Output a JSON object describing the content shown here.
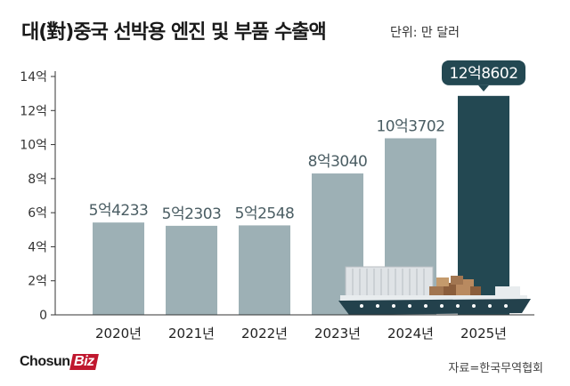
{
  "title": "대(對)중국 선박용 엔진 및 부품 수출액",
  "unit_label": "단위: 만 달러",
  "source": "자료=한국무역협회",
  "logo": {
    "main": "Chosun",
    "accent": "Biz"
  },
  "colors": {
    "bar": "#9db0b5",
    "bar_highlight": "#234852",
    "label_highlight_bg": "#234852",
    "axis": "#333333"
  },
  "chart_data": {
    "type": "bar",
    "title": "대(對)중국 선박용 엔진 및 부품 수출액",
    "unit": "만 달러",
    "categories": [
      "2020년",
      "2021년",
      "2022년",
      "2023년",
      "2024년",
      "2025년"
    ],
    "values": [
      54233,
      52303,
      52548,
      83040,
      103702,
      128602
    ],
    "data_labels": [
      "5억4233",
      "5억2303",
      "5억2548",
      "8억3040",
      "10억3702",
      "12억8602"
    ],
    "highlight_index": 5,
    "y_ticks": [
      {
        "value": 0,
        "label": "0"
      },
      {
        "value": 20000,
        "label": "2억"
      },
      {
        "value": 40000,
        "label": "4억"
      },
      {
        "value": 60000,
        "label": "6억"
      },
      {
        "value": 80000,
        "label": "8억"
      },
      {
        "value": 100000,
        "label": "10억"
      },
      {
        "value": 120000,
        "label": "12억"
      },
      {
        "value": 140000,
        "label": "14억"
      }
    ],
    "ylim": [
      0,
      140000
    ],
    "xlabel": "",
    "ylabel": ""
  }
}
